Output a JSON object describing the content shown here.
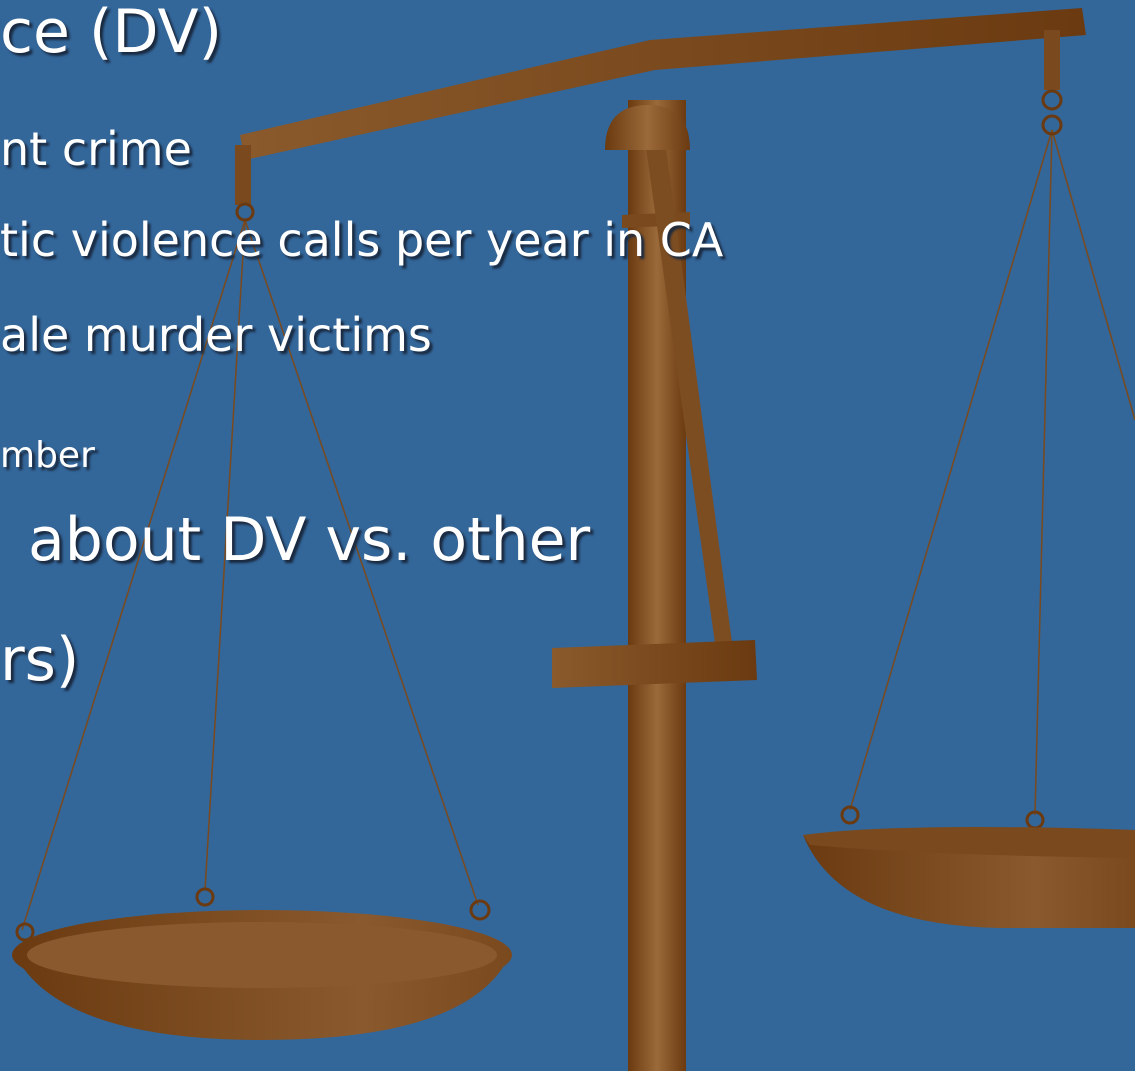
{
  "slide": {
    "lines": [
      {
        "text": "ce (DV)",
        "level": 1
      },
      {
        "text": "nt crime",
        "level": 2
      },
      {
        "text": "tic violence calls per year in CA",
        "level": 2
      },
      {
        "text": "ale murder victims",
        "level": 2
      },
      {
        "text": "mber",
        "level": 3
      },
      {
        "text": "about DV vs. other",
        "level": 1
      },
      {
        "text": "rs)",
        "level": 1
      }
    ]
  }
}
